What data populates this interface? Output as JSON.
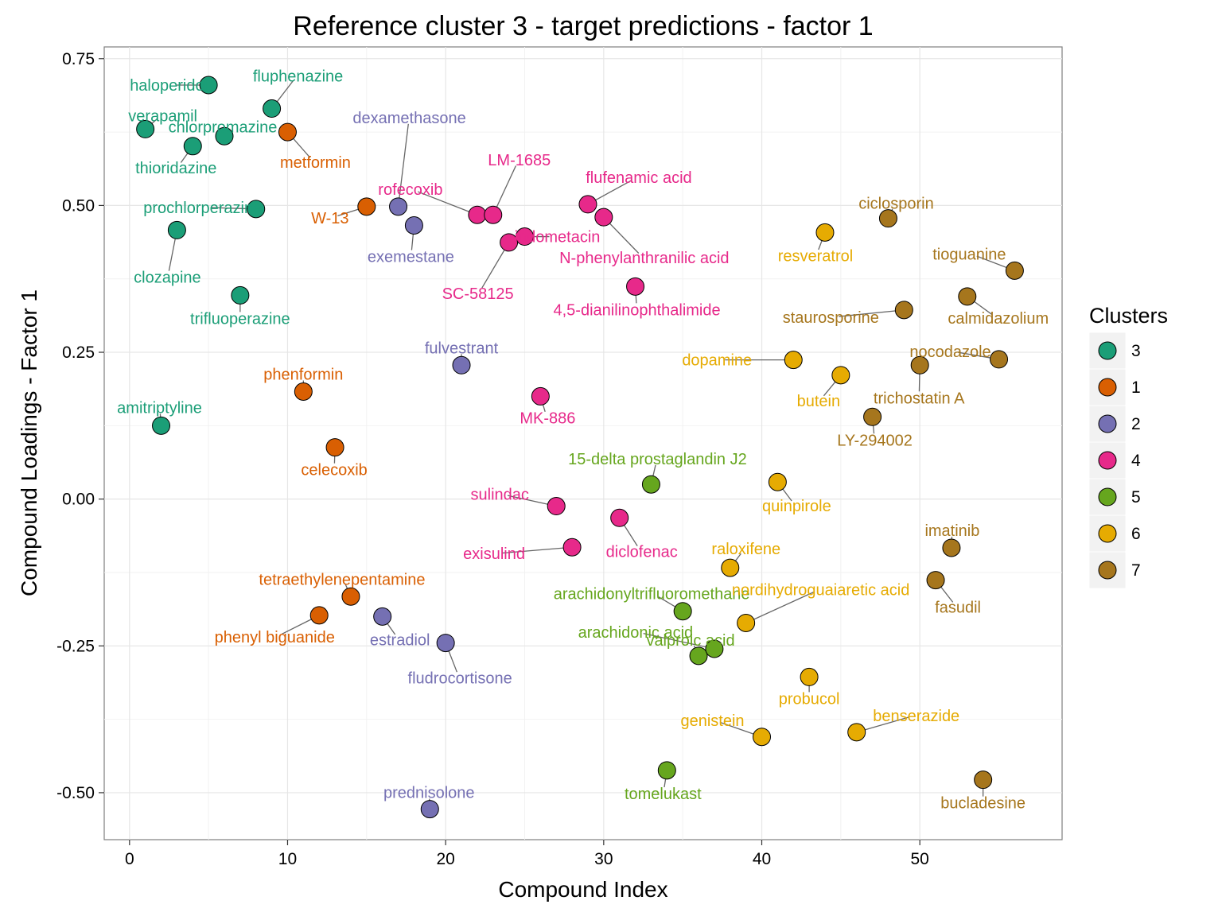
{
  "chart_data": {
    "type": "scatter",
    "title": "Reference cluster 3 - target predictions - factor 1",
    "xlabel": "Compound Index",
    "ylabel": "Compound Loadings - Factor 1",
    "xlim": [
      -1.6,
      59
    ],
    "ylim": [
      -0.58,
      0.77
    ],
    "x_ticks": [
      0,
      10,
      20,
      30,
      40,
      50
    ],
    "x_tick_labels": [
      "0",
      "10",
      "20",
      "30",
      "40",
      "50"
    ],
    "y_ticks": [
      -0.5,
      -0.25,
      0.0,
      0.25,
      0.5,
      0.75
    ],
    "y_tick_labels": [
      "-0.50",
      "-0.25",
      "0.00",
      "0.25",
      "0.50",
      "0.75"
    ],
    "grid": true,
    "legend": {
      "title": "Clusters",
      "position": "right",
      "items": [
        {
          "label": "3",
          "color": "#1b9e77"
        },
        {
          "label": "1",
          "color": "#d95f02"
        },
        {
          "label": "2",
          "color": "#7570b3"
        },
        {
          "label": "4",
          "color": "#e7298a"
        },
        {
          "label": "5",
          "color": "#66a61e"
        },
        {
          "label": "6",
          "color": "#e6ab02"
        },
        {
          "label": "7",
          "color": "#a6761d"
        }
      ]
    },
    "points": [
      {
        "x": 1,
        "y": 0.63,
        "label": "verapamil",
        "cluster": "3"
      },
      {
        "x": 2,
        "y": 0.125,
        "label": "amitriptyline",
        "cluster": "3"
      },
      {
        "x": 3,
        "y": 0.458,
        "label": "clozapine",
        "cluster": "3"
      },
      {
        "x": 4,
        "y": 0.601,
        "label": "thioridazine",
        "cluster": "3"
      },
      {
        "x": 5,
        "y": 0.705,
        "label": "haloperidol",
        "cluster": "3"
      },
      {
        "x": 6,
        "y": 0.618,
        "label": "chlorpromazine",
        "cluster": "3"
      },
      {
        "x": 7,
        "y": 0.347,
        "label": "trifluoperazine",
        "cluster": "3"
      },
      {
        "x": 8,
        "y": 0.494,
        "label": "prochlorperazine",
        "cluster": "3"
      },
      {
        "x": 9,
        "y": 0.665,
        "label": "fluphenazine",
        "cluster": "3"
      },
      {
        "x": 10,
        "y": 0.625,
        "label": "metformin",
        "cluster": "1"
      },
      {
        "x": 11,
        "y": 0.183,
        "label": "phenformin",
        "cluster": "1"
      },
      {
        "x": 12,
        "y": -0.198,
        "label": "phenyl biguanide",
        "cluster": "1"
      },
      {
        "x": 13,
        "y": 0.088,
        "label": "celecoxib",
        "cluster": "1"
      },
      {
        "x": 14,
        "y": -0.166,
        "label": "tetraethylenepentamine",
        "cluster": "1"
      },
      {
        "x": 15,
        "y": 0.498,
        "label": "W-13",
        "cluster": "1"
      },
      {
        "x": 16,
        "y": -0.2,
        "label": "estradiol",
        "cluster": "2"
      },
      {
        "x": 17,
        "y": 0.498,
        "label": "dexamethasone",
        "cluster": "2"
      },
      {
        "x": 18,
        "y": 0.466,
        "label": "exemestane",
        "cluster": "2"
      },
      {
        "x": 19,
        "y": -0.528,
        "label": "prednisolone",
        "cluster": "2"
      },
      {
        "x": 20,
        "y": -0.245,
        "label": "fludrocortisone",
        "cluster": "2"
      },
      {
        "x": 21,
        "y": 0.228,
        "label": "fulvestrant",
        "cluster": "2"
      },
      {
        "x": 22,
        "y": 0.484,
        "label": "rofecoxib",
        "cluster": "4"
      },
      {
        "x": 23,
        "y": 0.484,
        "label": "LM-1685",
        "cluster": "4"
      },
      {
        "x": 24,
        "y": 0.437,
        "label": "SC-58125",
        "cluster": "4"
      },
      {
        "x": 25,
        "y": 0.447,
        "label": "indometacin",
        "cluster": "4"
      },
      {
        "x": 26,
        "y": 0.175,
        "label": "MK-886",
        "cluster": "4"
      },
      {
        "x": 27,
        "y": -0.012,
        "label": "sulindac",
        "cluster": "4"
      },
      {
        "x": 28,
        "y": -0.082,
        "label": "exisulind",
        "cluster": "4"
      },
      {
        "x": 29,
        "y": 0.502,
        "label": "flufenamic acid",
        "cluster": "4"
      },
      {
        "x": 30,
        "y": 0.48,
        "label": "N-phenylanthranilic acid",
        "cluster": "4"
      },
      {
        "x": 31,
        "y": -0.032,
        "label": "diclofenac",
        "cluster": "4"
      },
      {
        "x": 32,
        "y": 0.362,
        "label": "4,5-dianilinophthalimide",
        "cluster": "4"
      },
      {
        "x": 33,
        "y": 0.025,
        "label": "15-delta prostaglandin J2",
        "cluster": "5"
      },
      {
        "x": 34,
        "y": -0.462,
        "label": "tomelukast",
        "cluster": "5"
      },
      {
        "x": 35,
        "y": -0.191,
        "label": "arachidonyltrifluoromethane",
        "cluster": "5"
      },
      {
        "x": 36,
        "y": -0.267,
        "label": "valproic acid",
        "cluster": "5"
      },
      {
        "x": 37,
        "y": -0.255,
        "label": "arachidonic acid",
        "cluster": "5"
      },
      {
        "x": 38,
        "y": -0.117,
        "label": "raloxifene",
        "cluster": "6"
      },
      {
        "x": 39,
        "y": -0.211,
        "label": "nordihydroguaiaretic acid",
        "cluster": "6"
      },
      {
        "x": 40,
        "y": -0.405,
        "label": "genistein",
        "cluster": "6"
      },
      {
        "x": 41,
        "y": 0.029,
        "label": "quinpirole",
        "cluster": "6"
      },
      {
        "x": 42,
        "y": 0.237,
        "label": "dopamine",
        "cluster": "6"
      },
      {
        "x": 43,
        "y": -0.303,
        "label": "probucol",
        "cluster": "6"
      },
      {
        "x": 44,
        "y": 0.454,
        "label": "resveratrol",
        "cluster": "6"
      },
      {
        "x": 45,
        "y": 0.211,
        "label": "butein",
        "cluster": "6"
      },
      {
        "x": 46,
        "y": -0.397,
        "label": "benserazide",
        "cluster": "6"
      },
      {
        "x": 47,
        "y": 0.14,
        "label": "LY-294002",
        "cluster": "7"
      },
      {
        "x": 48,
        "y": 0.478,
        "label": "ciclosporin",
        "cluster": "7"
      },
      {
        "x": 49,
        "y": 0.322,
        "label": "staurosporine",
        "cluster": "7"
      },
      {
        "x": 50,
        "y": 0.228,
        "label": "trichostatin A",
        "cluster": "7"
      },
      {
        "x": 51,
        "y": -0.138,
        "label": "fasudil",
        "cluster": "7"
      },
      {
        "x": 52,
        "y": -0.083,
        "label": "imatinib",
        "cluster": "7"
      },
      {
        "x": 53,
        "y": 0.345,
        "label": "calmidazolium",
        "cluster": "7"
      },
      {
        "x": 54,
        "y": -0.478,
        "label": "bucladesine",
        "cluster": "7"
      },
      {
        "x": 55,
        "y": 0.238,
        "label": "nocodazole",
        "cluster": "7"
      },
      {
        "x": 56,
        "y": 0.389,
        "label": "tioguanine",
        "cluster": "7"
      }
    ]
  }
}
